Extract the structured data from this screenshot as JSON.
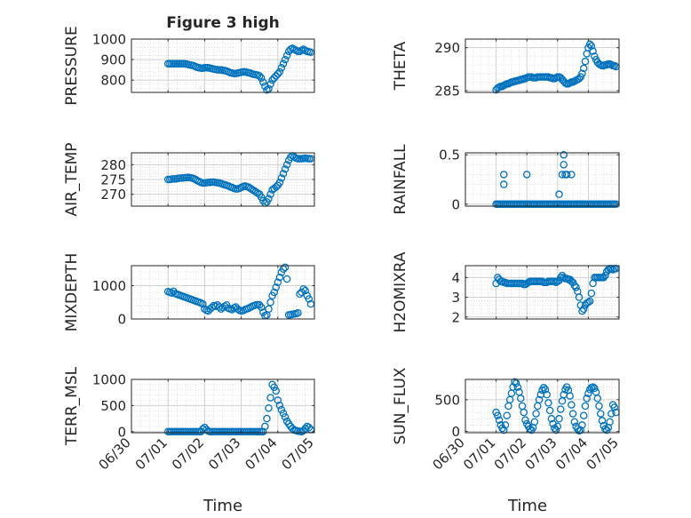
{
  "title": "Figure 3 high",
  "xlabel": "Time",
  "x_ticks": [
    "06/30",
    "07/01",
    "07/02",
    "07/03",
    "07/04",
    "07/05"
  ],
  "marker_color": "#0072BD",
  "chart_data": [
    {
      "type": "scatter",
      "ylabel": "PRESSURE",
      "ylim": [
        740,
        1000
      ],
      "yticks": [
        800,
        900,
        1000
      ],
      "grid": true,
      "x": [
        1.0,
        1.05,
        1.1,
        1.15,
        1.2,
        1.25,
        1.3,
        1.35,
        1.4,
        1.45,
        1.5,
        1.55,
        1.6,
        1.65,
        1.7,
        1.75,
        1.8,
        1.85,
        1.9,
        1.95,
        2.0,
        2.05,
        2.1,
        2.15,
        2.2,
        2.25,
        2.3,
        2.35,
        2.4,
        2.45,
        2.5,
        2.55,
        2.6,
        2.65,
        2.7,
        2.75,
        2.8,
        2.85,
        2.9,
        2.95,
        3.0,
        3.05,
        3.1,
        3.15,
        3.2,
        3.25,
        3.3,
        3.35,
        3.4,
        3.45,
        3.5,
        3.55,
        3.6,
        3.65,
        3.7,
        3.75,
        3.8,
        3.85,
        3.9,
        3.95,
        4.0,
        4.05,
        4.1,
        4.15,
        4.2,
        4.25,
        4.3,
        4.35,
        4.4,
        4.45,
        4.5,
        4.55,
        4.6,
        4.65,
        4.7,
        4.75,
        4.8,
        4.85,
        4.9
      ],
      "y": [
        880,
        880,
        880,
        880,
        880,
        880,
        880,
        880,
        880,
        880,
        878,
        876,
        874,
        872,
        870,
        866,
        862,
        860,
        858,
        858,
        860,
        860,
        860,
        858,
        856,
        854,
        852,
        850,
        850,
        850,
        848,
        846,
        844,
        840,
        836,
        834,
        832,
        832,
        834,
        836,
        838,
        840,
        840,
        838,
        836,
        834,
        830,
        828,
        826,
        824,
        820,
        810,
        790,
        770,
        752,
        758,
        780,
        800,
        810,
        820,
        830,
        840,
        860,
        880,
        900,
        920,
        940,
        950,
        955,
        950,
        945,
        940,
        940,
        945,
        950,
        945,
        940,
        938,
        936
      ]
    },
    {
      "type": "scatter",
      "ylabel": "THETA",
      "ylim": [
        284.8,
        291
      ],
      "yticks": [
        285,
        290
      ],
      "grid": true,
      "x": [
        1.0,
        1.05,
        1.1,
        1.15,
        1.2,
        1.25,
        1.3,
        1.35,
        1.4,
        1.45,
        1.5,
        1.55,
        1.6,
        1.65,
        1.7,
        1.75,
        1.8,
        1.85,
        1.9,
        1.95,
        2.0,
        2.05,
        2.1,
        2.15,
        2.2,
        2.25,
        2.3,
        2.35,
        2.4,
        2.45,
        2.5,
        2.55,
        2.6,
        2.65,
        2.7,
        2.75,
        2.8,
        2.85,
        2.9,
        2.95,
        3.0,
        3.05,
        3.1,
        3.15,
        3.2,
        3.25,
        3.3,
        3.35,
        3.4,
        3.45,
        3.5,
        3.55,
        3.6,
        3.65,
        3.7,
        3.75,
        3.8,
        3.85,
        3.9,
        3.95,
        4.0,
        4.05,
        4.1,
        4.15,
        4.2,
        4.25,
        4.3,
        4.35,
        4.4,
        4.45,
        4.5,
        4.55,
        4.6,
        4.65,
        4.7,
        4.75,
        4.8,
        4.85,
        4.9
      ],
      "y": [
        285.1,
        285.3,
        285.4,
        285.5,
        285.5,
        285.6,
        285.7,
        285.8,
        285.8,
        285.9,
        286.0,
        286.0,
        286.1,
        286.1,
        286.2,
        286.2,
        286.3,
        286.3,
        286.4,
        286.4,
        286.5,
        286.6,
        286.6,
        286.6,
        286.5,
        286.5,
        286.5,
        286.6,
        286.6,
        286.6,
        286.6,
        286.6,
        286.6,
        286.6,
        286.6,
        286.5,
        286.5,
        286.4,
        286.4,
        286.5,
        286.6,
        286.6,
        286.5,
        286.3,
        286.1,
        285.9,
        285.8,
        285.8,
        285.9,
        286.0,
        286.0,
        286.1,
        286.2,
        286.3,
        286.4,
        286.6,
        287.0,
        287.6,
        288.4,
        289.3,
        290.0,
        290.4,
        290.2,
        289.6,
        289.0,
        288.6,
        288.3,
        288.1,
        288.0,
        287.9,
        287.9,
        288.0,
        288.0,
        288.1,
        288.1,
        288.0,
        287.9,
        287.9,
        287.8
      ]
    },
    {
      "type": "scatter",
      "ylabel": "AIR_TEMP",
      "ylim": [
        266,
        284
      ],
      "yticks": [
        270,
        275,
        280
      ],
      "grid": true,
      "x": [
        1.0,
        1.05,
        1.1,
        1.15,
        1.2,
        1.25,
        1.3,
        1.35,
        1.4,
        1.45,
        1.5,
        1.55,
        1.6,
        1.65,
        1.7,
        1.75,
        1.8,
        1.85,
        1.9,
        1.95,
        2.0,
        2.05,
        2.1,
        2.15,
        2.2,
        2.25,
        2.3,
        2.35,
        2.4,
        2.45,
        2.5,
        2.55,
        2.6,
        2.65,
        2.7,
        2.75,
        2.8,
        2.85,
        2.9,
        2.95,
        3.0,
        3.05,
        3.1,
        3.15,
        3.2,
        3.25,
        3.3,
        3.35,
        3.4,
        3.45,
        3.5,
        3.55,
        3.6,
        3.65,
        3.7,
        3.75,
        3.8,
        3.85,
        3.9,
        3.95,
        4.0,
        4.05,
        4.1,
        4.15,
        4.2,
        4.25,
        4.3,
        4.35,
        4.4,
        4.45,
        4.5,
        4.55,
        4.6,
        4.65,
        4.7,
        4.75,
        4.8,
        4.85,
        4.9
      ],
      "y": [
        275.0,
        275.0,
        275.1,
        275.2,
        275.2,
        275.3,
        275.4,
        275.5,
        275.5,
        275.6,
        275.6,
        275.7,
        275.6,
        275.5,
        275.3,
        275.0,
        274.6,
        274.3,
        274.0,
        273.8,
        273.8,
        273.9,
        274.0,
        274.0,
        274.1,
        274.1,
        274.0,
        273.9,
        273.8,
        273.6,
        273.4,
        273.2,
        273.0,
        272.8,
        272.5,
        272.3,
        272.0,
        271.8,
        271.8,
        272.0,
        272.3,
        272.6,
        272.8,
        272.6,
        272.4,
        272.0,
        271.6,
        271.2,
        270.8,
        270.4,
        270.0,
        269.0,
        267.8,
        267.0,
        267.4,
        268.5,
        270.0,
        271.5,
        272.0,
        272.5,
        273.0,
        274.0,
        275.5,
        277.0,
        278.5,
        280.0,
        281.5,
        282.5,
        283.0,
        282.6,
        282.2,
        282.0,
        282.0,
        282.0,
        282.1,
        282.2,
        282.1,
        282.0,
        282.0
      ]
    },
    {
      "type": "scatter",
      "ylabel": "RAINFALL",
      "ylim": [
        -0.02,
        0.52
      ],
      "yticks": [
        0,
        0.5
      ],
      "grid": true,
      "x": [
        1.0,
        1.05,
        1.1,
        1.15,
        1.2,
        1.25,
        1.3,
        1.35,
        1.4,
        1.45,
        1.5,
        1.55,
        1.6,
        1.65,
        1.7,
        1.75,
        1.8,
        1.85,
        1.9,
        1.95,
        2.0,
        2.05,
        2.1,
        2.15,
        2.2,
        2.25,
        2.3,
        2.35,
        2.4,
        2.45,
        2.5,
        2.55,
        2.6,
        2.65,
        2.7,
        2.75,
        2.8,
        2.85,
        2.9,
        2.95,
        3.0,
        3.05,
        3.1,
        3.15,
        3.2,
        3.25,
        3.3,
        3.35,
        3.4,
        3.45,
        3.5,
        3.55,
        3.6,
        3.65,
        3.7,
        3.75,
        3.8,
        3.85,
        3.9,
        3.95,
        4.0,
        4.05,
        4.1,
        4.15,
        4.2,
        4.25,
        4.3,
        4.35,
        4.4,
        4.45,
        4.5,
        4.55,
        4.6,
        4.65,
        4.7,
        4.75,
        4.8,
        4.85,
        4.9,
        1.25,
        1.25,
        2.0,
        3.05,
        3.15,
        3.2,
        3.2,
        3.25,
        3.3,
        3.45
      ],
      "y": [
        0,
        0,
        0,
        0,
        0,
        0,
        0,
        0,
        0,
        0,
        0,
        0,
        0,
        0,
        0,
        0,
        0,
        0,
        0,
        0,
        0,
        0,
        0,
        0,
        0,
        0,
        0,
        0,
        0,
        0,
        0,
        0,
        0,
        0,
        0,
        0,
        0,
        0,
        0,
        0,
        0,
        0,
        0,
        0,
        0,
        0,
        0,
        0,
        0,
        0,
        0,
        0,
        0,
        0,
        0,
        0,
        0,
        0,
        0,
        0,
        0,
        0,
        0,
        0,
        0,
        0,
        0,
        0,
        0,
        0,
        0,
        0,
        0,
        0,
        0,
        0,
        0,
        0,
        0,
        0.3,
        0.2,
        0.3,
        0.1,
        0.3,
        0.5,
        0.4,
        0.3,
        0.3,
        0.3
      ]
    },
    {
      "type": "scatter",
      "ylabel": "MIXDEPTH",
      "ylim": [
        0,
        1600
      ],
      "yticks": [
        0,
        1000
      ],
      "grid": true,
      "x": [
        1.0,
        1.05,
        1.1,
        1.15,
        1.2,
        1.25,
        1.3,
        1.35,
        1.4,
        1.45,
        1.5,
        1.55,
        1.6,
        1.65,
        1.7,
        1.75,
        1.8,
        1.85,
        1.9,
        1.95,
        2.0,
        2.05,
        2.1,
        2.15,
        2.2,
        2.25,
        2.3,
        2.35,
        2.4,
        2.45,
        2.5,
        2.55,
        2.6,
        2.65,
        2.7,
        2.75,
        2.8,
        2.85,
        2.9,
        2.95,
        3.0,
        3.05,
        3.1,
        3.15,
        3.2,
        3.25,
        3.3,
        3.35,
        3.4,
        3.45,
        3.5,
        3.55,
        3.6,
        3.65,
        3.7,
        3.75,
        3.8,
        3.85,
        3.9,
        3.95,
        4.0,
        4.05,
        4.1,
        4.15,
        4.2,
        4.25,
        4.3,
        4.35,
        4.4,
        4.45,
        4.5,
        4.55,
        4.6,
        4.65,
        4.7,
        4.75,
        4.8,
        4.85,
        4.9
      ],
      "y": [
        820,
        800,
        780,
        830,
        760,
        740,
        720,
        700,
        680,
        660,
        640,
        620,
        600,
        580,
        560,
        540,
        520,
        500,
        480,
        450,
        300,
        260,
        240,
        300,
        350,
        400,
        380,
        420,
        360,
        300,
        340,
        380,
        420,
        320,
        300,
        280,
        330,
        360,
        300,
        260,
        240,
        250,
        280,
        300,
        320,
        350,
        380,
        400,
        420,
        430,
        420,
        350,
        200,
        100,
        120,
        300,
        500,
        700,
        800,
        950,
        1100,
        1250,
        1400,
        1500,
        1550,
        1200,
        120,
        130,
        140,
        150,
        160,
        180,
        750,
        800,
        900,
        850,
        700,
        600,
        450
      ]
    },
    {
      "type": "scatter",
      "ylabel": "H2OMIXRA",
      "ylim": [
        1.9,
        4.6
      ],
      "yticks": [
        2,
        3,
        4
      ],
      "grid": true,
      "x": [
        1.0,
        1.05,
        1.1,
        1.15,
        1.2,
        1.25,
        1.3,
        1.35,
        1.4,
        1.45,
        1.5,
        1.55,
        1.6,
        1.65,
        1.7,
        1.75,
        1.8,
        1.85,
        1.9,
        1.95,
        2.0,
        2.05,
        2.1,
        2.15,
        2.2,
        2.25,
        2.3,
        2.35,
        2.4,
        2.45,
        2.5,
        2.55,
        2.6,
        2.65,
        2.7,
        2.75,
        2.8,
        2.85,
        2.9,
        2.95,
        3.0,
        3.05,
        3.1,
        3.15,
        3.2,
        3.25,
        3.3,
        3.35,
        3.4,
        3.45,
        3.5,
        3.55,
        3.6,
        3.65,
        3.7,
        3.75,
        3.8,
        3.85,
        3.9,
        3.95,
        4.0,
        4.05,
        4.1,
        4.15,
        4.2,
        4.25,
        4.3,
        4.35,
        4.4,
        4.45,
        4.5,
        4.55,
        4.6,
        4.65,
        4.7,
        4.75,
        4.8,
        4.85,
        4.9
      ],
      "y": [
        3.7,
        4.0,
        3.9,
        3.8,
        3.8,
        3.75,
        3.75,
        3.7,
        3.7,
        3.7,
        3.7,
        3.7,
        3.7,
        3.7,
        3.7,
        3.7,
        3.7,
        3.7,
        3.65,
        3.65,
        3.7,
        3.75,
        3.8,
        3.8,
        3.8,
        3.8,
        3.8,
        3.8,
        3.8,
        3.8,
        3.8,
        3.75,
        3.75,
        3.75,
        3.8,
        3.8,
        3.8,
        3.8,
        3.8,
        3.75,
        3.8,
        3.85,
        4.0,
        4.1,
        4.0,
        3.95,
        3.95,
        3.9,
        3.9,
        3.8,
        3.75,
        3.6,
        3.5,
        3.3,
        3.0,
        2.6,
        2.3,
        2.4,
        2.6,
        2.7,
        2.75,
        2.8,
        3.2,
        3.7,
        4.0,
        4.0,
        4.0,
        4.0,
        4.0,
        4.0,
        4.0,
        4.1,
        4.3,
        4.4,
        4.45,
        4.45,
        4.4,
        4.45,
        4.45
      ]
    },
    {
      "type": "scatter",
      "ylabel": "TERR_MSL",
      "ylim": [
        -20,
        1000
      ],
      "yticks": [
        0,
        500,
        1000
      ],
      "grid": true,
      "x": [
        1.0,
        1.05,
        1.1,
        1.15,
        1.2,
        1.25,
        1.3,
        1.35,
        1.4,
        1.45,
        1.5,
        1.55,
        1.6,
        1.65,
        1.7,
        1.75,
        1.8,
        1.85,
        1.9,
        1.95,
        2.0,
        2.05,
        2.1,
        2.15,
        2.2,
        2.25,
        2.3,
        2.35,
        2.4,
        2.45,
        2.5,
        2.55,
        2.6,
        2.65,
        2.7,
        2.75,
        2.8,
        2.85,
        2.9,
        2.95,
        3.0,
        3.05,
        3.1,
        3.15,
        3.2,
        3.25,
        3.3,
        3.35,
        3.4,
        3.45,
        3.5,
        3.55,
        3.6,
        3.65,
        3.7,
        3.75,
        3.8,
        3.85,
        3.9,
        3.95,
        4.0,
        4.05,
        4.1,
        4.15,
        4.2,
        4.25,
        4.3,
        4.35,
        4.4,
        4.45,
        4.5,
        4.55,
        4.6,
        4.65,
        4.7,
        4.75,
        4.8,
        4.85,
        4.9
      ],
      "y": [
        0,
        0,
        0,
        0,
        0,
        0,
        0,
        0,
        0,
        0,
        0,
        0,
        0,
        0,
        0,
        0,
        0,
        0,
        0,
        50,
        80,
        40,
        10,
        0,
        0,
        0,
        0,
        0,
        0,
        0,
        0,
        0,
        0,
        0,
        0,
        0,
        0,
        0,
        0,
        0,
        0,
        0,
        0,
        0,
        0,
        0,
        0,
        0,
        0,
        0,
        0,
        0,
        0,
        100,
        250,
        450,
        650,
        900,
        850,
        780,
        600,
        500,
        420,
        350,
        280,
        200,
        150,
        100,
        60,
        30,
        20,
        10,
        5,
        0,
        20,
        60,
        100,
        80,
        40
      ]
    },
    {
      "type": "scatter",
      "ylabel": "SUN_FLUX",
      "ylim": [
        -20,
        820
      ],
      "yticks": [
        0,
        500
      ],
      "grid": true,
      "x": [
        1.0,
        1.05,
        1.1,
        1.15,
        1.2,
        1.25,
        1.3,
        1.35,
        1.4,
        1.45,
        1.5,
        1.55,
        1.6,
        1.65,
        1.7,
        1.75,
        1.8,
        1.85,
        1.9,
        1.95,
        2.0,
        2.05,
        2.1,
        2.15,
        2.2,
        2.25,
        2.3,
        2.35,
        2.4,
        2.45,
        2.5,
        2.55,
        2.6,
        2.65,
        2.7,
        2.75,
        2.8,
        2.85,
        2.9,
        2.95,
        3.0,
        3.05,
        3.1,
        3.15,
        3.2,
        3.25,
        3.3,
        3.35,
        3.4,
        3.45,
        3.5,
        3.55,
        3.6,
        3.65,
        3.7,
        3.75,
        3.8,
        3.85,
        3.9,
        3.95,
        4.0,
        4.05,
        4.1,
        4.15,
        4.2,
        4.25,
        4.3,
        4.35,
        4.4,
        4.45,
        4.5,
        4.55,
        4.6,
        4.65,
        4.7,
        4.75,
        4.8,
        4.85,
        4.9
      ],
      "y": [
        300,
        250,
        180,
        100,
        50,
        20,
        100,
        250,
        400,
        500,
        600,
        700,
        780,
        760,
        700,
        620,
        520,
        400,
        300,
        180,
        120,
        80,
        40,
        20,
        60,
        150,
        280,
        400,
        500,
        580,
        650,
        690,
        660,
        580,
        450,
        330,
        200,
        120,
        50,
        20,
        80,
        200,
        350,
        480,
        580,
        660,
        700,
        650,
        560,
        420,
        280,
        150,
        80,
        40,
        10,
        20,
        100,
        250,
        400,
        520,
        600,
        660,
        690,
        700,
        680,
        620,
        520,
        400,
        280,
        170,
        90,
        40,
        20,
        60,
        150,
        280,
        420,
        380,
        300
      ]
    }
  ]
}
